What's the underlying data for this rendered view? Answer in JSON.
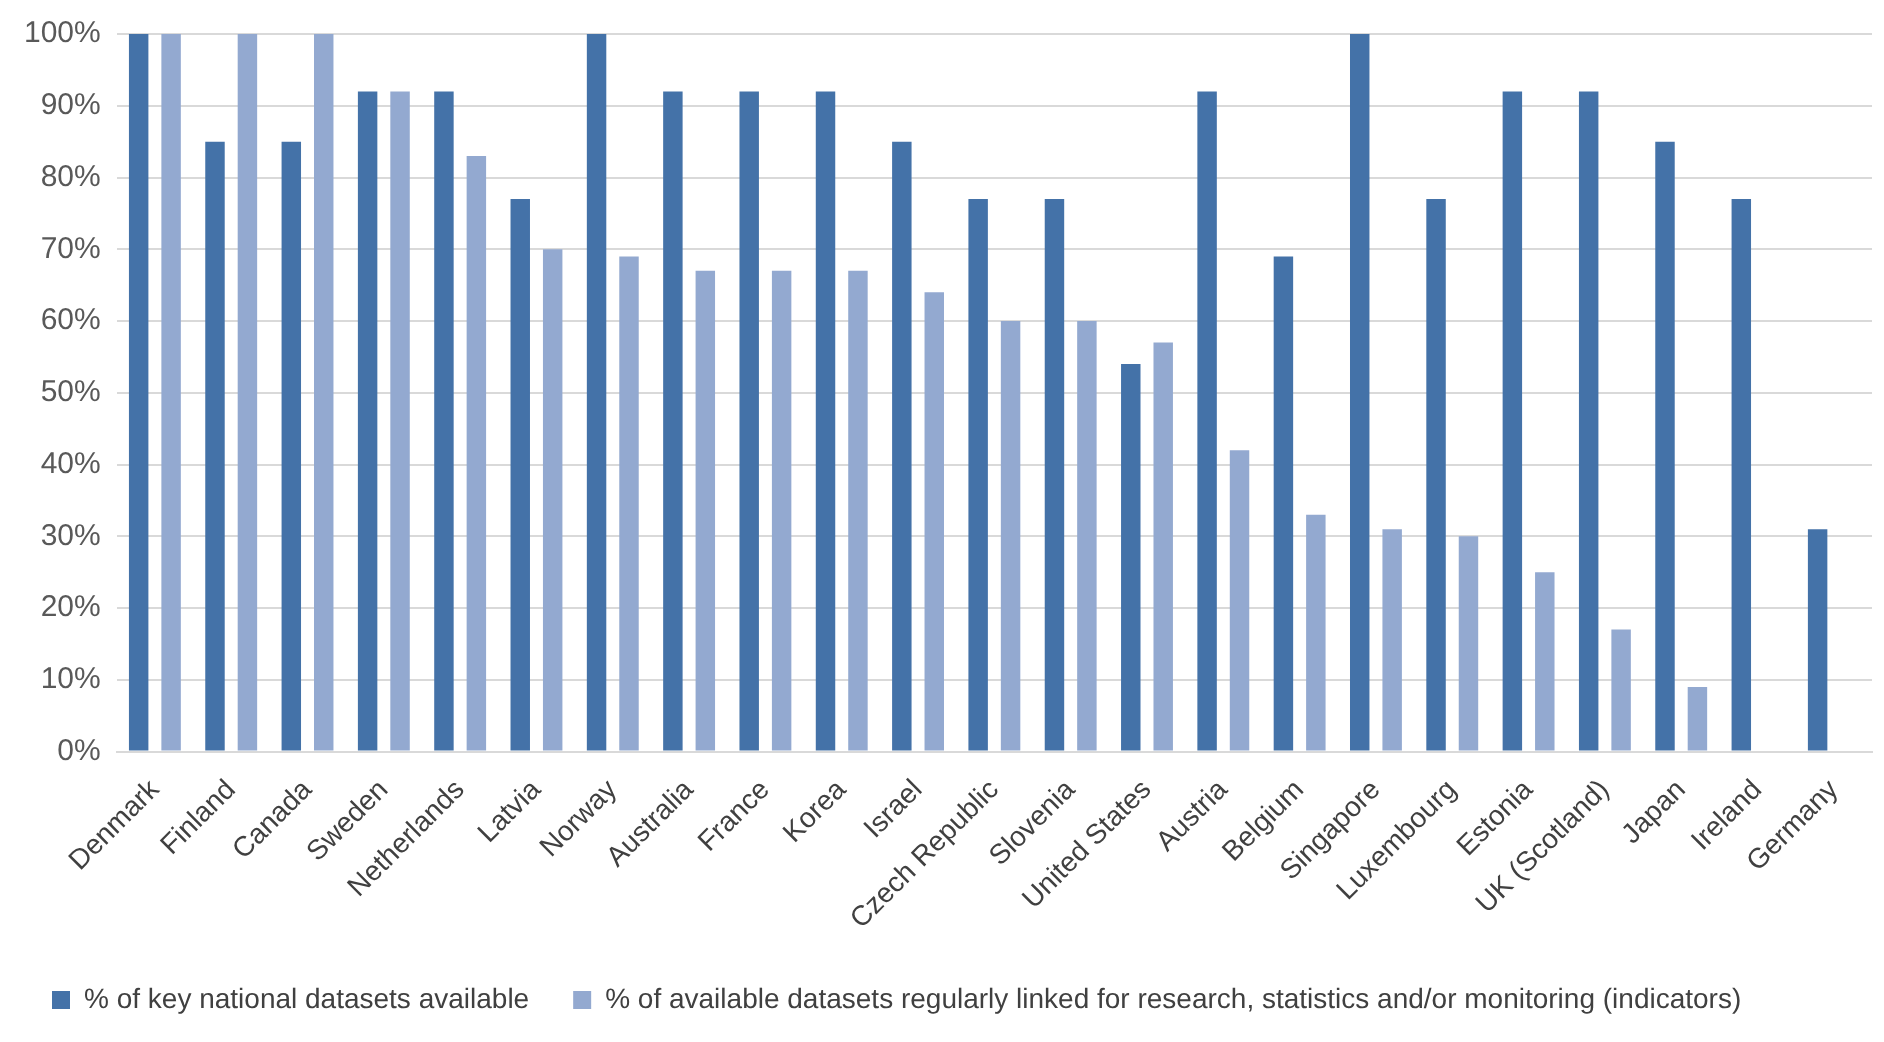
{
  "chart_data": {
    "type": "bar",
    "categories": [
      "Denmark",
      "Finland",
      "Canada",
      "Sweden",
      "Netherlands",
      "Latvia",
      "Norway",
      "Australia",
      "France",
      "Korea",
      "Israel",
      "Czech Republic",
      "Slovenia",
      "United States",
      "Austria",
      "Belgium",
      "Singapore",
      "Luxembourg",
      "Estonia",
      "UK (Scotland)",
      "Japan",
      "Ireland",
      "Germany"
    ],
    "series": [
      {
        "name": "% of key national datasets available",
        "color": "#4472a8",
        "values": [
          100,
          85,
          85,
          92,
          92,
          77,
          100,
          92,
          92,
          92,
          85,
          77,
          77,
          54,
          92,
          69,
          100,
          77,
          92,
          92,
          85,
          77,
          31
        ]
      },
      {
        "name": "% of available datasets regularly linked for research, statistics and/or monitoring (indicators)",
        "color": "#93a9d0",
        "values": [
          100,
          100,
          100,
          92,
          83,
          70,
          69,
          67,
          67,
          67,
          64,
          60,
          60,
          57,
          42,
          33,
          31,
          30,
          25,
          17,
          9,
          null,
          null
        ]
      }
    ],
    "ylim": [
      0,
      100
    ],
    "yticks": [
      {
        "value": 0,
        "label": "0%"
      },
      {
        "value": 10,
        "label": "10%"
      },
      {
        "value": 20,
        "label": "20%"
      },
      {
        "value": 30,
        "label": "30%"
      },
      {
        "value": 40,
        "label": "40%"
      },
      {
        "value": 50,
        "label": "50%"
      },
      {
        "value": 60,
        "label": "60%"
      },
      {
        "value": 70,
        "label": "70%"
      },
      {
        "value": 80,
        "label": "80%"
      },
      {
        "value": 90,
        "label": "90%"
      },
      {
        "value": 100,
        "label": "100%"
      }
    ],
    "grid": "y",
    "legend": "bottom"
  }
}
